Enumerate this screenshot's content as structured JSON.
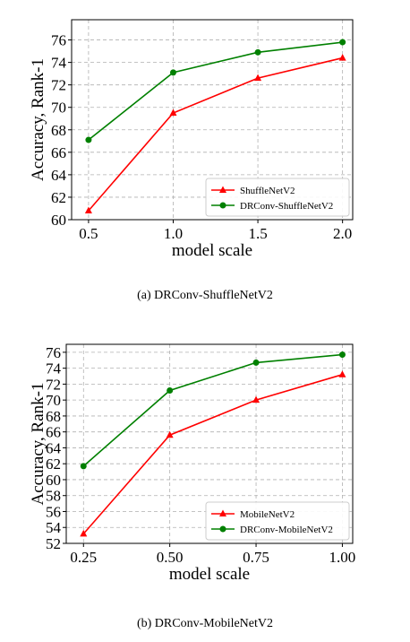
{
  "chart_data": [
    {
      "type": "line",
      "caption": "(a)  DRConv-ShuffleNetV2",
      "xlabel": "model scale",
      "ylabel": "Accuracy, Rank-1",
      "x": [
        0.5,
        1.0,
        1.5,
        2.0
      ],
      "x_tick_labels": [
        "0.5",
        "1.0",
        "1.5",
        "2.0"
      ],
      "xlim": [
        0.4,
        2.06
      ],
      "y_ticks": [
        60,
        62,
        64,
        66,
        68,
        70,
        72,
        74,
        76
      ],
      "ylim": [
        60,
        77.8
      ],
      "grid": true,
      "legend_position": "lower-right",
      "series": [
        {
          "name": "ShuffleNetV2",
          "color": "#ff0000",
          "marker": "triangle",
          "values": [
            60.8,
            69.5,
            72.6,
            74.4
          ]
        },
        {
          "name": "DRConv-ShuffleNetV2",
          "color": "#008000",
          "marker": "circle",
          "values": [
            67.1,
            73.1,
            74.9,
            75.8
          ]
        }
      ]
    },
    {
      "type": "line",
      "caption": "(b)  DRConv-MobileNetV2",
      "xlabel": "model scale",
      "ylabel": "Accuracy, Rank-1",
      "x": [
        0.25,
        0.5,
        0.75,
        1.0
      ],
      "x_tick_labels": [
        "0.25",
        "0.50",
        "0.75",
        "1.00"
      ],
      "xlim": [
        0.2,
        1.03
      ],
      "y_ticks": [
        52,
        54,
        56,
        58,
        60,
        62,
        64,
        66,
        68,
        70,
        72,
        74,
        76
      ],
      "ylim": [
        52,
        77
      ],
      "grid": true,
      "legend_position": "lower-right",
      "series": [
        {
          "name": "MobileNetV2",
          "color": "#ff0000",
          "marker": "triangle",
          "values": [
            53.2,
            65.6,
            70.0,
            73.2
          ]
        },
        {
          "name": "DRConv-MobileNetV2",
          "color": "#008000",
          "marker": "circle",
          "values": [
            61.7,
            71.2,
            74.7,
            75.7
          ]
        }
      ]
    }
  ]
}
